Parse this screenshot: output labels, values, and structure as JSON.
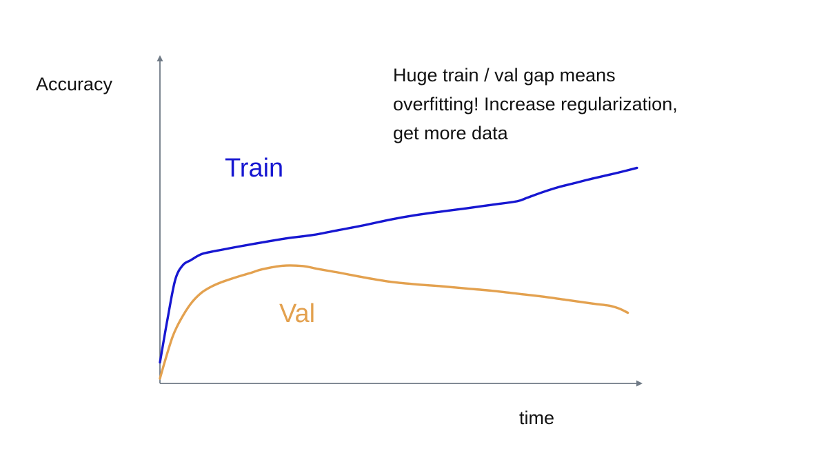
{
  "chart_data": {
    "type": "line",
    "title": "",
    "xlabel": "time",
    "ylabel": "Accuracy",
    "xlim": [
      0,
      100
    ],
    "ylim": [
      0,
      100
    ],
    "grid": false,
    "legend": "inline labels",
    "series": [
      {
        "name": "Train",
        "color": "#1717d1",
        "x": [
          0,
          1.5,
          3,
          4.5,
          6,
          8,
          10,
          12,
          15,
          20,
          25,
          30,
          35,
          40,
          45,
          50,
          55,
          60,
          65,
          70,
          72,
          75,
          78,
          81,
          84,
          87,
          90,
          93.5
        ],
        "y": [
          6.5,
          20,
          32,
          36.5,
          38,
          39.8,
          40.6,
          41.2,
          42.1,
          43.5,
          44.8,
          45.8,
          47.3,
          48.8,
          50.5,
          51.9,
          53.0,
          54.0,
          55.1,
          56.2,
          57.3,
          59.0,
          60.5,
          61.7,
          62.9,
          64.0,
          65.1,
          66.5
        ]
      },
      {
        "name": "Val",
        "color": "#e3a14f",
        "x": [
          0,
          1,
          2.5,
          4,
          6,
          8,
          10,
          12,
          15,
          18,
          20,
          24,
          28,
          31,
          35,
          40,
          45,
          50,
          55,
          60,
          65,
          70,
          75,
          80,
          85,
          88,
          90,
          91.7
        ],
        "y": [
          1.5,
          7,
          14.5,
          19.5,
          24.5,
          27.8,
          29.8,
          31.2,
          32.8,
          34.2,
          35.2,
          36.3,
          36.2,
          35.3,
          34.2,
          32.7,
          31.4,
          30.6,
          30.0,
          29.3,
          28.6,
          27.7,
          26.8,
          25.7,
          24.6,
          24.0,
          23.1,
          21.8
        ]
      }
    ],
    "annotations": [
      {
        "text_lines": [
          "Huge train / val gap means",
          "overfitting! Increase regularization,",
          "get more data"
        ]
      }
    ]
  }
}
